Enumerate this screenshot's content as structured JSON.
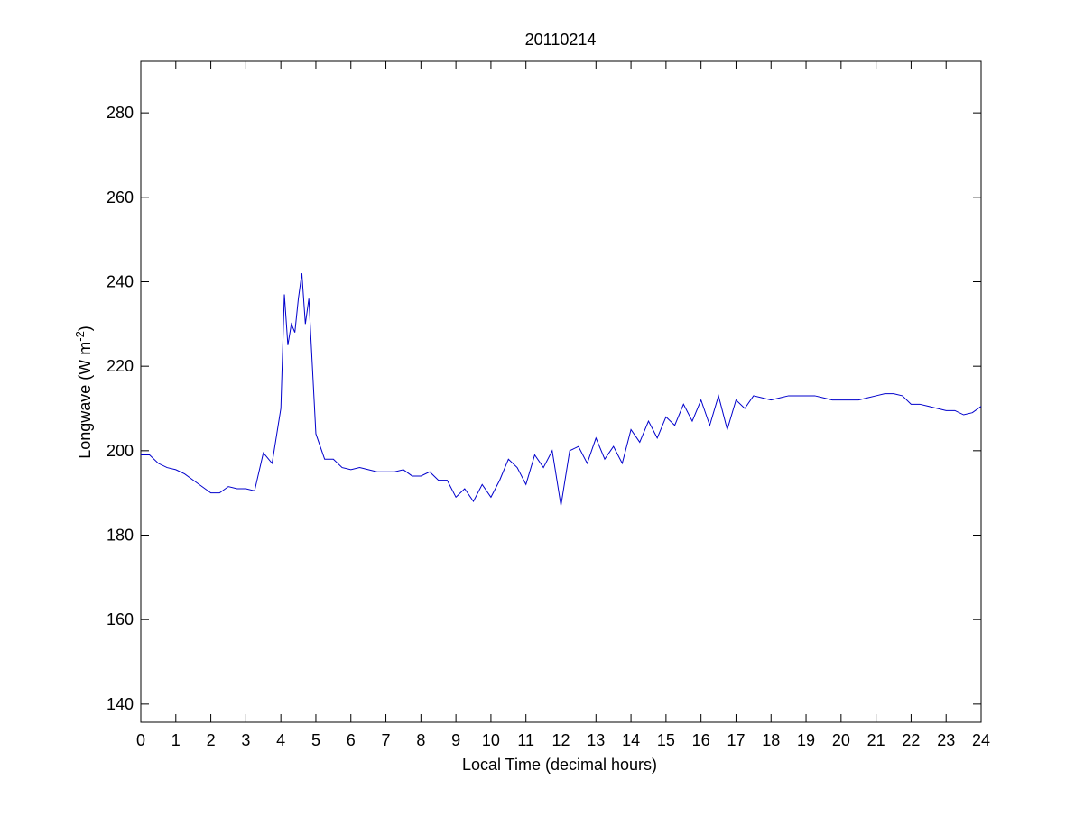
{
  "chart_data": {
    "type": "line",
    "title": "20110214",
    "xlabel": "Local Time (decimal hours)",
    "ylabel": {
      "text": "Longwave (W m",
      "sup": "-2",
      "close": ")"
    },
    "xlim": [
      0,
      24
    ],
    "ylim": [
      135.7,
      292.2
    ],
    "xticks": [
      0,
      1,
      2,
      3,
      4,
      5,
      6,
      7,
      8,
      9,
      10,
      11,
      12,
      13,
      14,
      15,
      16,
      17,
      18,
      19,
      20,
      21,
      22,
      23,
      24
    ],
    "yticks": [
      140,
      160,
      180,
      200,
      220,
      240,
      260,
      280
    ],
    "series": [
      {
        "name": "Longwave",
        "color": "#0000cc",
        "x": [
          0,
          0.25,
          0.5,
          0.75,
          1,
          1.25,
          1.5,
          1.75,
          2,
          2.25,
          2.5,
          2.75,
          3,
          3.25,
          3.5,
          3.75,
          4,
          4.1,
          4.2,
          4.3,
          4.4,
          4.5,
          4.6,
          4.7,
          4.8,
          5,
          5.25,
          5.5,
          5.75,
          6,
          6.25,
          6.5,
          6.75,
          7,
          7.25,
          7.5,
          7.75,
          8,
          8.25,
          8.5,
          8.75,
          9,
          9.25,
          9.5,
          9.75,
          10,
          10.25,
          10.5,
          10.75,
          11,
          11.25,
          11.5,
          11.75,
          12,
          12.25,
          12.5,
          12.75,
          13,
          13.25,
          13.5,
          13.75,
          14,
          14.25,
          14.5,
          14.75,
          15,
          15.25,
          15.5,
          15.75,
          16,
          16.25,
          16.5,
          16.75,
          17,
          17.25,
          17.5,
          17.75,
          18,
          18.25,
          18.5,
          18.75,
          19,
          19.25,
          19.5,
          19.75,
          20,
          20.25,
          20.5,
          20.75,
          21,
          21.25,
          21.5,
          21.75,
          22,
          22.25,
          22.5,
          22.75,
          23,
          23.25,
          23.5,
          23.75,
          24
        ],
        "values": [
          199,
          199,
          197,
          196,
          195.5,
          194.5,
          193,
          191.5,
          190,
          190,
          191.5,
          191,
          191,
          190.5,
          199.5,
          197,
          210,
          237,
          225,
          230,
          228,
          236,
          242,
          230,
          236,
          204,
          198,
          198,
          196,
          195.5,
          196,
          195.5,
          195,
          195,
          195,
          195.5,
          194,
          194,
          195,
          193,
          193,
          189,
          191,
          188,
          192,
          189,
          193,
          198,
          196,
          192,
          199,
          196,
          200,
          187,
          200,
          201,
          197,
          203,
          198,
          201,
          197,
          205,
          202,
          207,
          203,
          208,
          206,
          211,
          207,
          212,
          206,
          213,
          205,
          212,
          210,
          213,
          212.5,
          212,
          212.5,
          213,
          213,
          213,
          213,
          212.5,
          212,
          212,
          212,
          212,
          212.5,
          213,
          213.5,
          213.5,
          213,
          211,
          211,
          210.5,
          210,
          209.5,
          209.5,
          208.5,
          209,
          210.5
        ]
      }
    ]
  }
}
